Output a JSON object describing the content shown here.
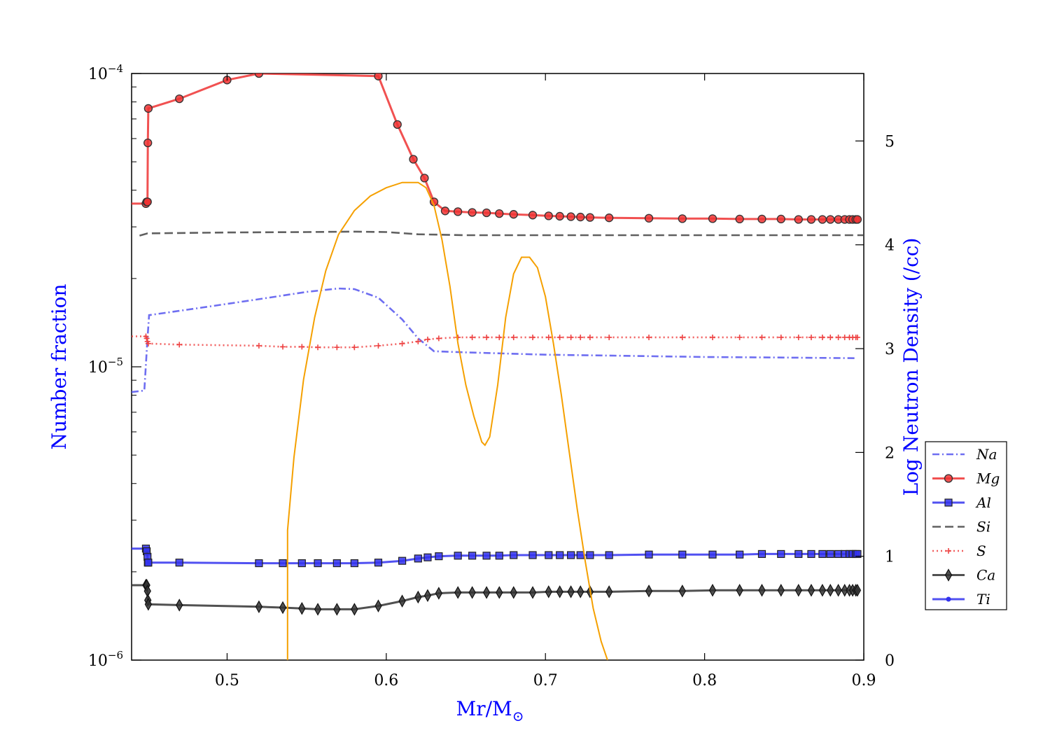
{
  "chart_data": {
    "type": "line",
    "title": "",
    "xlabel": "Mr/M",
    "xlabel_sub": "⊙",
    "ylabel_left": "Number fraction",
    "ylabel_right": "Log Neutron Density (/cc)",
    "axis_label_color": "#0000ff",
    "xlim": [
      0.44,
      0.9
    ],
    "ylim_left": [
      1e-06,
      0.0001
    ],
    "yscale_left": "log",
    "ylim_right": [
      0,
      5.65
    ],
    "yscale_right": "linear",
    "x_ticks": [
      "0.5",
      "0.6",
      "0.7",
      "0.8",
      "0.9"
    ],
    "y_left_ticks": [
      {
        "value": 1e-06,
        "base": "10",
        "exp": "−6"
      },
      {
        "value": 1e-05,
        "base": "10",
        "exp": "−5"
      },
      {
        "value": 0.0001,
        "base": "10",
        "exp": "−4"
      }
    ],
    "y_right_ticks": [
      "0",
      "1",
      "2",
      "3",
      "4",
      "5"
    ],
    "grid": false,
    "legend_position": "right",
    "series": [
      {
        "name": "Na",
        "color": "#5555ee",
        "dash": "dashdot",
        "marker": "none",
        "axis": "left",
        "points": [
          [
            0.44,
            8.2e-06
          ],
          [
            0.448,
            8.3e-06
          ],
          [
            0.45,
            1.25e-05
          ],
          [
            0.451,
            1.5e-05
          ],
          [
            0.48,
            1.58e-05
          ],
          [
            0.52,
            1.7e-05
          ],
          [
            0.55,
            1.8e-05
          ],
          [
            0.57,
            1.85e-05
          ],
          [
            0.58,
            1.84e-05
          ],
          [
            0.595,
            1.72e-05
          ],
          [
            0.61,
            1.45e-05
          ],
          [
            0.62,
            1.25e-05
          ],
          [
            0.63,
            1.13e-05
          ],
          [
            0.65,
            1.12e-05
          ],
          [
            0.7,
            1.1e-05
          ],
          [
            0.75,
            1.09e-05
          ],
          [
            0.8,
            1.08e-05
          ],
          [
            0.85,
            1.075e-05
          ],
          [
            0.895,
            1.07e-05
          ]
        ]
      },
      {
        "name": "Mg",
        "color": "#ee3333",
        "dash": "solid",
        "marker": "circle",
        "axis": "left",
        "points": [
          [
            0.44,
            3.6e-05
          ],
          [
            0.449,
            3.6e-05
          ],
          [
            0.4495,
            3.65e-05
          ],
          [
            0.45,
            3.65e-05
          ],
          [
            0.4502,
            5.8e-05
          ],
          [
            0.4505,
            7.6e-05
          ],
          [
            0.47,
            8.2e-05
          ],
          [
            0.5,
            9.5e-05
          ],
          [
            0.52,
            0.0001
          ],
          [
            0.595,
            9.8e-05
          ],
          [
            0.607,
            6.7e-05
          ],
          [
            0.617,
            5.1e-05
          ],
          [
            0.624,
            4.4e-05
          ],
          [
            0.63,
            3.65e-05
          ],
          [
            0.637,
            3.4e-05
          ],
          [
            0.645,
            3.38e-05
          ],
          [
            0.654,
            3.36e-05
          ],
          [
            0.663,
            3.35e-05
          ],
          [
            0.671,
            3.33e-05
          ],
          [
            0.68,
            3.31e-05
          ],
          [
            0.692,
            3.29e-05
          ],
          [
            0.702,
            3.27e-05
          ],
          [
            0.709,
            3.26e-05
          ],
          [
            0.716,
            3.25e-05
          ],
          [
            0.722,
            3.24e-05
          ],
          [
            0.728,
            3.23e-05
          ],
          [
            0.74,
            3.22e-05
          ],
          [
            0.765,
            3.21e-05
          ],
          [
            0.786,
            3.2e-05
          ],
          [
            0.805,
            3.2e-05
          ],
          [
            0.822,
            3.19e-05
          ],
          [
            0.836,
            3.19e-05
          ],
          [
            0.848,
            3.19e-05
          ],
          [
            0.859,
            3.18e-05
          ],
          [
            0.867,
            3.18e-05
          ],
          [
            0.874,
            3.18e-05
          ],
          [
            0.879,
            3.18e-05
          ],
          [
            0.884,
            3.18e-05
          ],
          [
            0.888,
            3.18e-05
          ],
          [
            0.891,
            3.18e-05
          ],
          [
            0.893,
            3.18e-05
          ],
          [
            0.895,
            3.18e-05
          ],
          [
            0.896,
            3.18e-05
          ]
        ]
      },
      {
        "name": "Al",
        "color": "#3333ee",
        "dash": "solid",
        "marker": "square",
        "axis": "left",
        "points": [
          [
            0.44,
            2.4e-06
          ],
          [
            0.449,
            2.4e-06
          ],
          [
            0.4495,
            2.35e-06
          ],
          [
            0.45,
            2.25e-06
          ],
          [
            0.4502,
            2.15e-06
          ],
          [
            0.4505,
            2.15e-06
          ],
          [
            0.47,
            2.15e-06
          ],
          [
            0.52,
            2.14e-06
          ],
          [
            0.535,
            2.14e-06
          ],
          [
            0.547,
            2.14e-06
          ],
          [
            0.557,
            2.14e-06
          ],
          [
            0.569,
            2.14e-06
          ],
          [
            0.58,
            2.14e-06
          ],
          [
            0.595,
            2.15e-06
          ],
          [
            0.61,
            2.18e-06
          ],
          [
            0.62,
            2.22e-06
          ],
          [
            0.626,
            2.24e-06
          ],
          [
            0.633,
            2.26e-06
          ],
          [
            0.645,
            2.27e-06
          ],
          [
            0.654,
            2.27e-06
          ],
          [
            0.663,
            2.27e-06
          ],
          [
            0.671,
            2.27e-06
          ],
          [
            0.68,
            2.28e-06
          ],
          [
            0.692,
            2.28e-06
          ],
          [
            0.702,
            2.28e-06
          ],
          [
            0.709,
            2.28e-06
          ],
          [
            0.716,
            2.28e-06
          ],
          [
            0.722,
            2.28e-06
          ],
          [
            0.728,
            2.28e-06
          ],
          [
            0.74,
            2.28e-06
          ],
          [
            0.765,
            2.29e-06
          ],
          [
            0.786,
            2.29e-06
          ],
          [
            0.805,
            2.29e-06
          ],
          [
            0.822,
            2.29e-06
          ],
          [
            0.836,
            2.3e-06
          ],
          [
            0.848,
            2.3e-06
          ],
          [
            0.859,
            2.3e-06
          ],
          [
            0.867,
            2.3e-06
          ],
          [
            0.874,
            2.3e-06
          ],
          [
            0.879,
            2.3e-06
          ],
          [
            0.884,
            2.3e-06
          ],
          [
            0.888,
            2.3e-06
          ],
          [
            0.891,
            2.3e-06
          ],
          [
            0.893,
            2.3e-06
          ],
          [
            0.895,
            2.3e-06
          ],
          [
            0.896,
            2.3e-06
          ]
        ]
      },
      {
        "name": "Si",
        "color": "#444444",
        "dash": "dashed",
        "marker": "none",
        "axis": "left",
        "points": [
          [
            0.445,
            2.8e-05
          ],
          [
            0.45,
            2.85e-05
          ],
          [
            0.5,
            2.87e-05
          ],
          [
            0.55,
            2.88e-05
          ],
          [
            0.58,
            2.89e-05
          ],
          [
            0.6,
            2.88e-05
          ],
          [
            0.62,
            2.83e-05
          ],
          [
            0.65,
            2.81e-05
          ],
          [
            0.7,
            2.81e-05
          ],
          [
            0.8,
            2.81e-05
          ],
          [
            0.9,
            2.81e-05
          ]
        ]
      },
      {
        "name": "S",
        "color": "#ee4444",
        "dash": "dotted",
        "marker": "plus",
        "axis": "left",
        "points": [
          [
            0.44,
            1.27e-05
          ],
          [
            0.449,
            1.27e-05
          ],
          [
            0.4495,
            1.25e-05
          ],
          [
            0.45,
            1.22e-05
          ],
          [
            0.4505,
            1.2e-05
          ],
          [
            0.47,
            1.19e-05
          ],
          [
            0.52,
            1.18e-05
          ],
          [
            0.535,
            1.17e-05
          ],
          [
            0.547,
            1.17e-05
          ],
          [
            0.557,
            1.165e-05
          ],
          [
            0.569,
            1.165e-05
          ],
          [
            0.58,
            1.165e-05
          ],
          [
            0.595,
            1.18e-05
          ],
          [
            0.61,
            1.2e-05
          ],
          [
            0.62,
            1.22e-05
          ],
          [
            0.626,
            1.24e-05
          ],
          [
            0.633,
            1.25e-05
          ],
          [
            0.645,
            1.26e-05
          ],
          [
            0.654,
            1.26e-05
          ],
          [
            0.663,
            1.26e-05
          ],
          [
            0.671,
            1.26e-05
          ],
          [
            0.68,
            1.26e-05
          ],
          [
            0.692,
            1.26e-05
          ],
          [
            0.702,
            1.26e-05
          ],
          [
            0.709,
            1.26e-05
          ],
          [
            0.716,
            1.26e-05
          ],
          [
            0.722,
            1.26e-05
          ],
          [
            0.728,
            1.26e-05
          ],
          [
            0.74,
            1.26e-05
          ],
          [
            0.765,
            1.26e-05
          ],
          [
            0.786,
            1.26e-05
          ],
          [
            0.805,
            1.26e-05
          ],
          [
            0.822,
            1.26e-05
          ],
          [
            0.836,
            1.26e-05
          ],
          [
            0.848,
            1.26e-05
          ],
          [
            0.859,
            1.26e-05
          ],
          [
            0.867,
            1.26e-05
          ],
          [
            0.874,
            1.26e-05
          ],
          [
            0.879,
            1.26e-05
          ],
          [
            0.884,
            1.26e-05
          ],
          [
            0.888,
            1.26e-05
          ],
          [
            0.891,
            1.26e-05
          ],
          [
            0.893,
            1.26e-05
          ],
          [
            0.895,
            1.26e-05
          ],
          [
            0.896,
            1.26e-05
          ]
        ]
      },
      {
        "name": "Ca",
        "color": "#333333",
        "dash": "solid",
        "marker": "diamond",
        "axis": "left",
        "points": [
          [
            0.44,
            1.8e-06
          ],
          [
            0.449,
            1.8e-06
          ],
          [
            0.4495,
            1.8e-06
          ],
          [
            0.45,
            1.72e-06
          ],
          [
            0.4502,
            1.6e-06
          ],
          [
            0.4505,
            1.55e-06
          ],
          [
            0.47,
            1.54e-06
          ],
          [
            0.52,
            1.52e-06
          ],
          [
            0.535,
            1.51e-06
          ],
          [
            0.547,
            1.5e-06
          ],
          [
            0.557,
            1.49e-06
          ],
          [
            0.569,
            1.49e-06
          ],
          [
            0.58,
            1.49e-06
          ],
          [
            0.595,
            1.53e-06
          ],
          [
            0.61,
            1.59e-06
          ],
          [
            0.62,
            1.64e-06
          ],
          [
            0.626,
            1.66e-06
          ],
          [
            0.633,
            1.69e-06
          ],
          [
            0.645,
            1.7e-06
          ],
          [
            0.654,
            1.7e-06
          ],
          [
            0.663,
            1.7e-06
          ],
          [
            0.671,
            1.7e-06
          ],
          [
            0.68,
            1.7e-06
          ],
          [
            0.692,
            1.7e-06
          ],
          [
            0.702,
            1.71e-06
          ],
          [
            0.709,
            1.71e-06
          ],
          [
            0.716,
            1.71e-06
          ],
          [
            0.722,
            1.71e-06
          ],
          [
            0.728,
            1.71e-06
          ],
          [
            0.74,
            1.71e-06
          ],
          [
            0.765,
            1.72e-06
          ],
          [
            0.786,
            1.72e-06
          ],
          [
            0.805,
            1.73e-06
          ],
          [
            0.822,
            1.73e-06
          ],
          [
            0.836,
            1.73e-06
          ],
          [
            0.848,
            1.73e-06
          ],
          [
            0.859,
            1.73e-06
          ],
          [
            0.867,
            1.73e-06
          ],
          [
            0.874,
            1.73e-06
          ],
          [
            0.879,
            1.73e-06
          ],
          [
            0.884,
            1.73e-06
          ],
          [
            0.888,
            1.73e-06
          ],
          [
            0.891,
            1.73e-06
          ],
          [
            0.893,
            1.73e-06
          ],
          [
            0.895,
            1.73e-06
          ],
          [
            0.896,
            1.73e-06
          ]
        ]
      },
      {
        "name": "Ti",
        "color": "#3333ee",
        "dash": "solid",
        "marker": "dot",
        "axis": "left",
        "points": []
      },
      {
        "name": "",
        "color": "#f5a000",
        "dash": "solid",
        "marker": "none",
        "axis": "right",
        "points": [
          [
            0.538,
            0
          ],
          [
            0.538,
            1.25
          ],
          [
            0.542,
            1.95
          ],
          [
            0.548,
            2.7
          ],
          [
            0.555,
            3.3
          ],
          [
            0.562,
            3.75
          ],
          [
            0.57,
            4.1
          ],
          [
            0.58,
            4.33
          ],
          [
            0.59,
            4.47
          ],
          [
            0.6,
            4.55
          ],
          [
            0.61,
            4.6
          ],
          [
            0.62,
            4.6
          ],
          [
            0.625,
            4.55
          ],
          [
            0.63,
            4.38
          ],
          [
            0.635,
            4.05
          ],
          [
            0.64,
            3.6
          ],
          [
            0.645,
            3.05
          ],
          [
            0.65,
            2.65
          ],
          [
            0.655,
            2.35
          ],
          [
            0.66,
            2.1
          ],
          [
            0.662,
            2.07
          ],
          [
            0.665,
            2.15
          ],
          [
            0.67,
            2.65
          ],
          [
            0.675,
            3.3
          ],
          [
            0.68,
            3.72
          ],
          [
            0.685,
            3.88
          ],
          [
            0.69,
            3.88
          ],
          [
            0.695,
            3.78
          ],
          [
            0.7,
            3.5
          ],
          [
            0.705,
            3.05
          ],
          [
            0.71,
            2.55
          ],
          [
            0.715,
            2.0
          ],
          [
            0.72,
            1.45
          ],
          [
            0.725,
            0.95
          ],
          [
            0.73,
            0.5
          ],
          [
            0.735,
            0.18
          ],
          [
            0.739,
            0
          ]
        ]
      }
    ]
  }
}
